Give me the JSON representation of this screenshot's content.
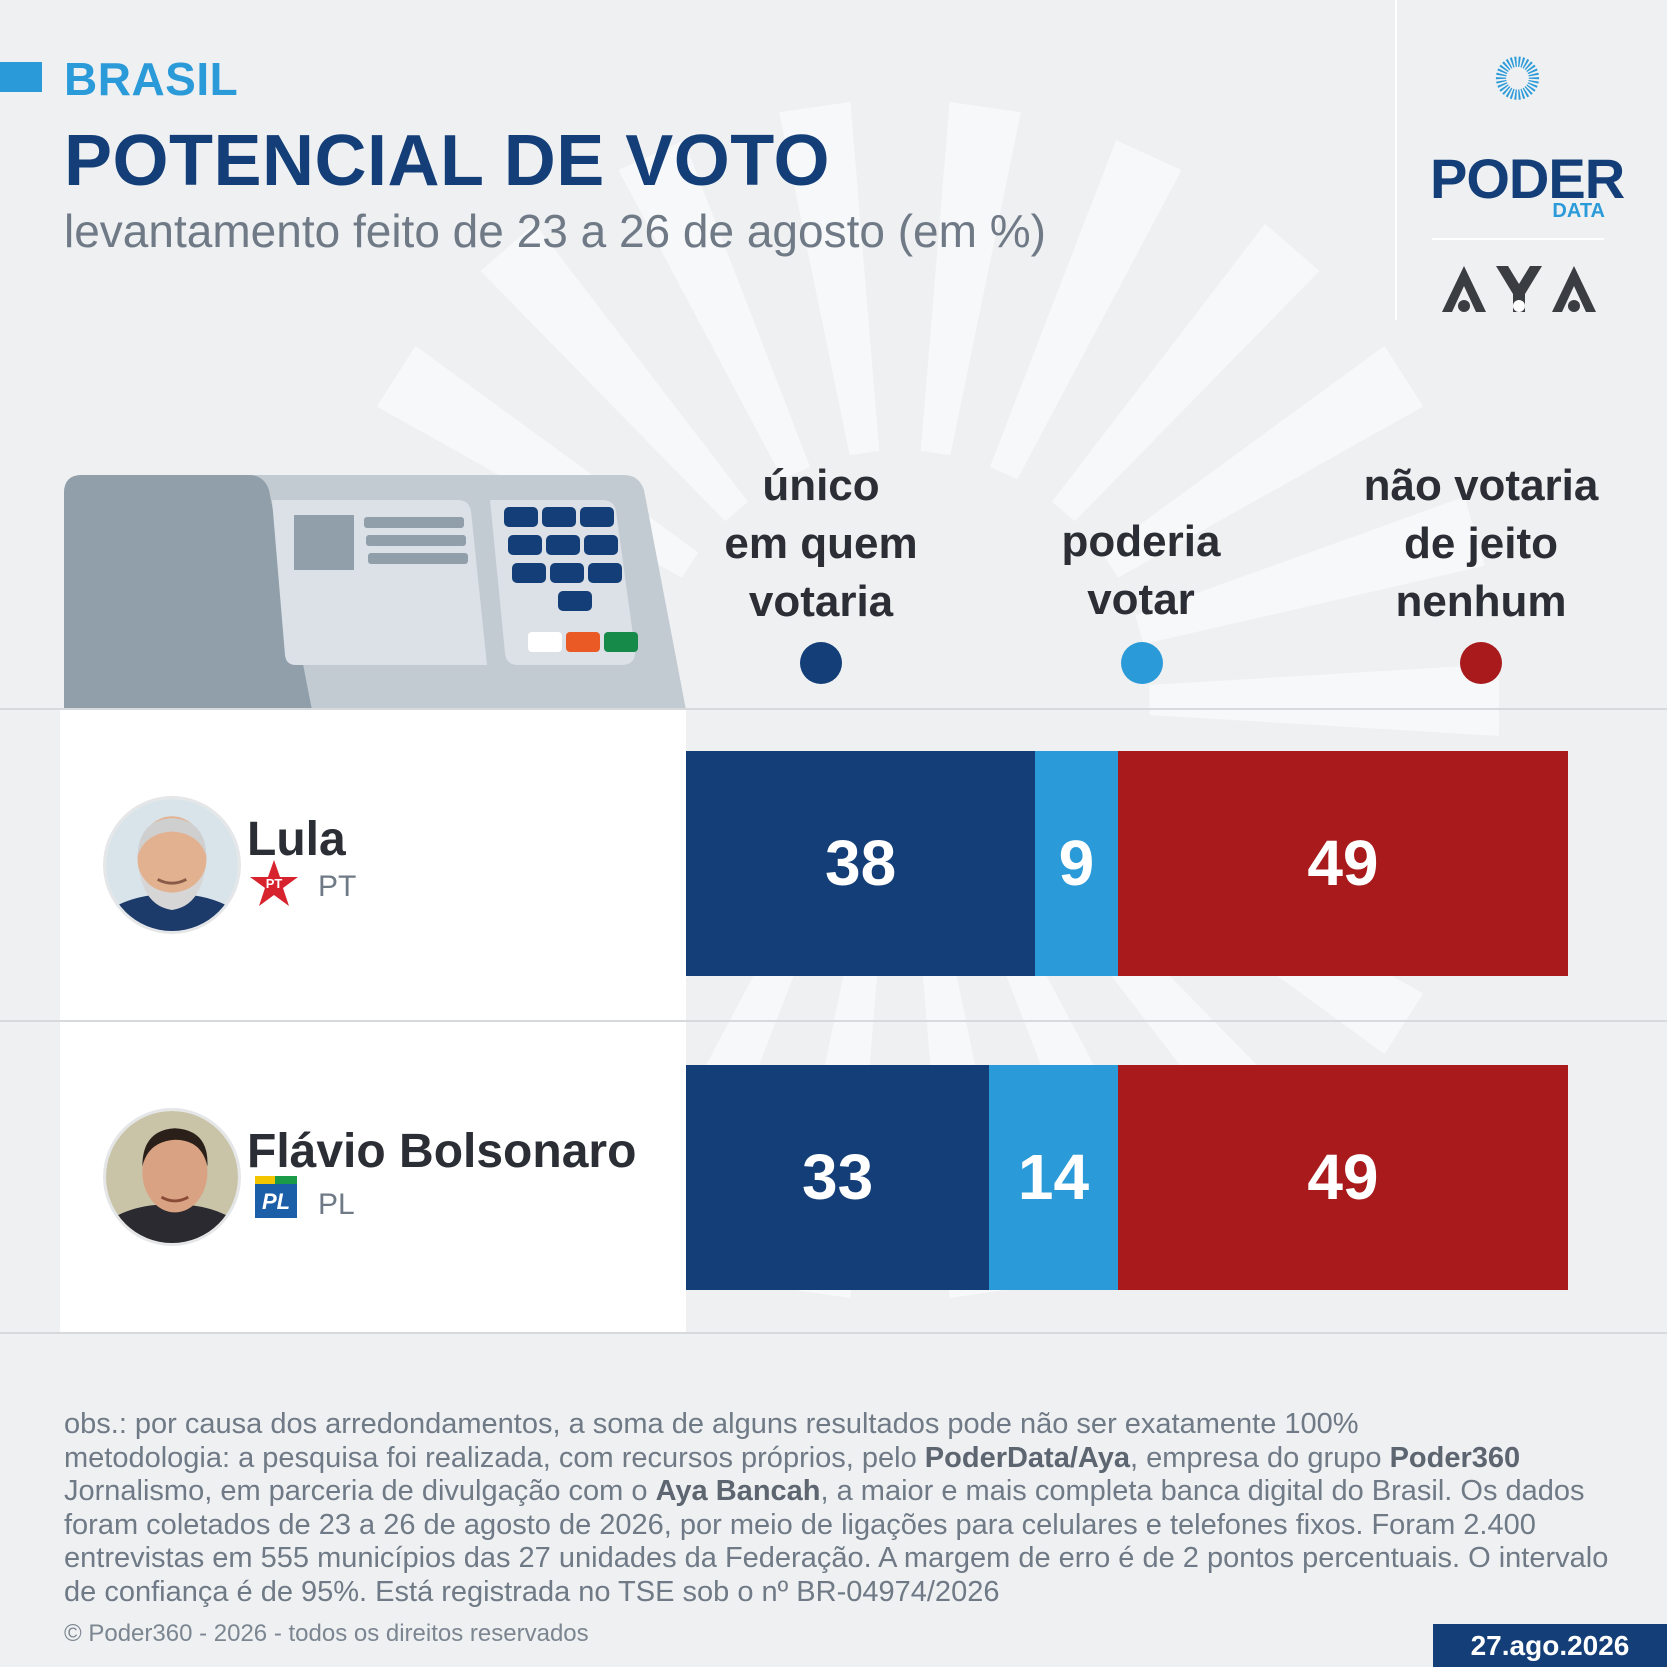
{
  "header": {
    "kicker": "BRASIL",
    "title": "POTENCIAL DE VOTO",
    "subtitle": "levantamento feito de 23 a 26 de agosto (em %)"
  },
  "logos": {
    "poder_word": "PODER",
    "poder_data": "DATA",
    "aya_word": "AYA"
  },
  "chart_data": {
    "type": "bar",
    "orientation": "horizontal-stacked",
    "title": "POTENCIAL DE VOTO",
    "categories": [
      "Lula",
      "Flávio Bolsonaro"
    ],
    "series": [
      {
        "name": "único em quem votaria",
        "values": [
          38,
          33
        ],
        "color": "#133e78"
      },
      {
        "name": "poderia votar",
        "values": [
          9,
          14
        ],
        "color": "#2b9ad8"
      },
      {
        "name": "não votaria de jeito nenhum",
        "values": [
          49,
          49
        ],
        "color": "#a81a1c"
      }
    ],
    "legend_placement": "top"
  },
  "columns": [
    {
      "lines": [
        "único",
        "em quem",
        "votaria"
      ],
      "color": "#133e78"
    },
    {
      "lines": [
        "poderia",
        "votar"
      ],
      "color": "#2b9ad8"
    },
    {
      "lines": [
        "não votaria",
        "de jeito",
        "nenhum"
      ],
      "color": "#a81a1c"
    }
  ],
  "candidates": [
    {
      "name": "Lula",
      "party": "PT",
      "party_badge": "PT",
      "party_color": "#d7232e"
    },
    {
      "name": "Flávio Bolsonaro",
      "party": "PL",
      "party_badge": "PL",
      "party_color": "#1b5fa8"
    }
  ],
  "notes": {
    "line1": "obs.: por causa dos arredondamentos, a soma de alguns resultados pode não ser exatamente 100%",
    "meth_a": "metodologia: a pesquisa foi realizada, com recursos próprios, pelo ",
    "meth_b": "PoderData/Aya",
    "meth_c": ", empresa do grupo ",
    "meth_d": "Poder360",
    "meth_e": " Jornalismo, em parceria de divulgação com o ",
    "meth_f": "Aya Bancah",
    "meth_g": ", a maior e mais completa banca digital do Brasil. Os dados foram coletados de 23 a 26 de agosto de 2026, por meio de ligações para celulares e telefones fixos. Foram 2.400 entrevistas em 555 municípios das 27 unidades da Federação. A margem de erro é de 2 pontos percentuais. O intervalo de confiança é de 95%. Está registrada no TSE sob o nº BR-04974/2026"
  },
  "footer": {
    "copyright": "© Poder360 - 2026 - todos os direitos reservados",
    "date": "27.ago.2026"
  }
}
